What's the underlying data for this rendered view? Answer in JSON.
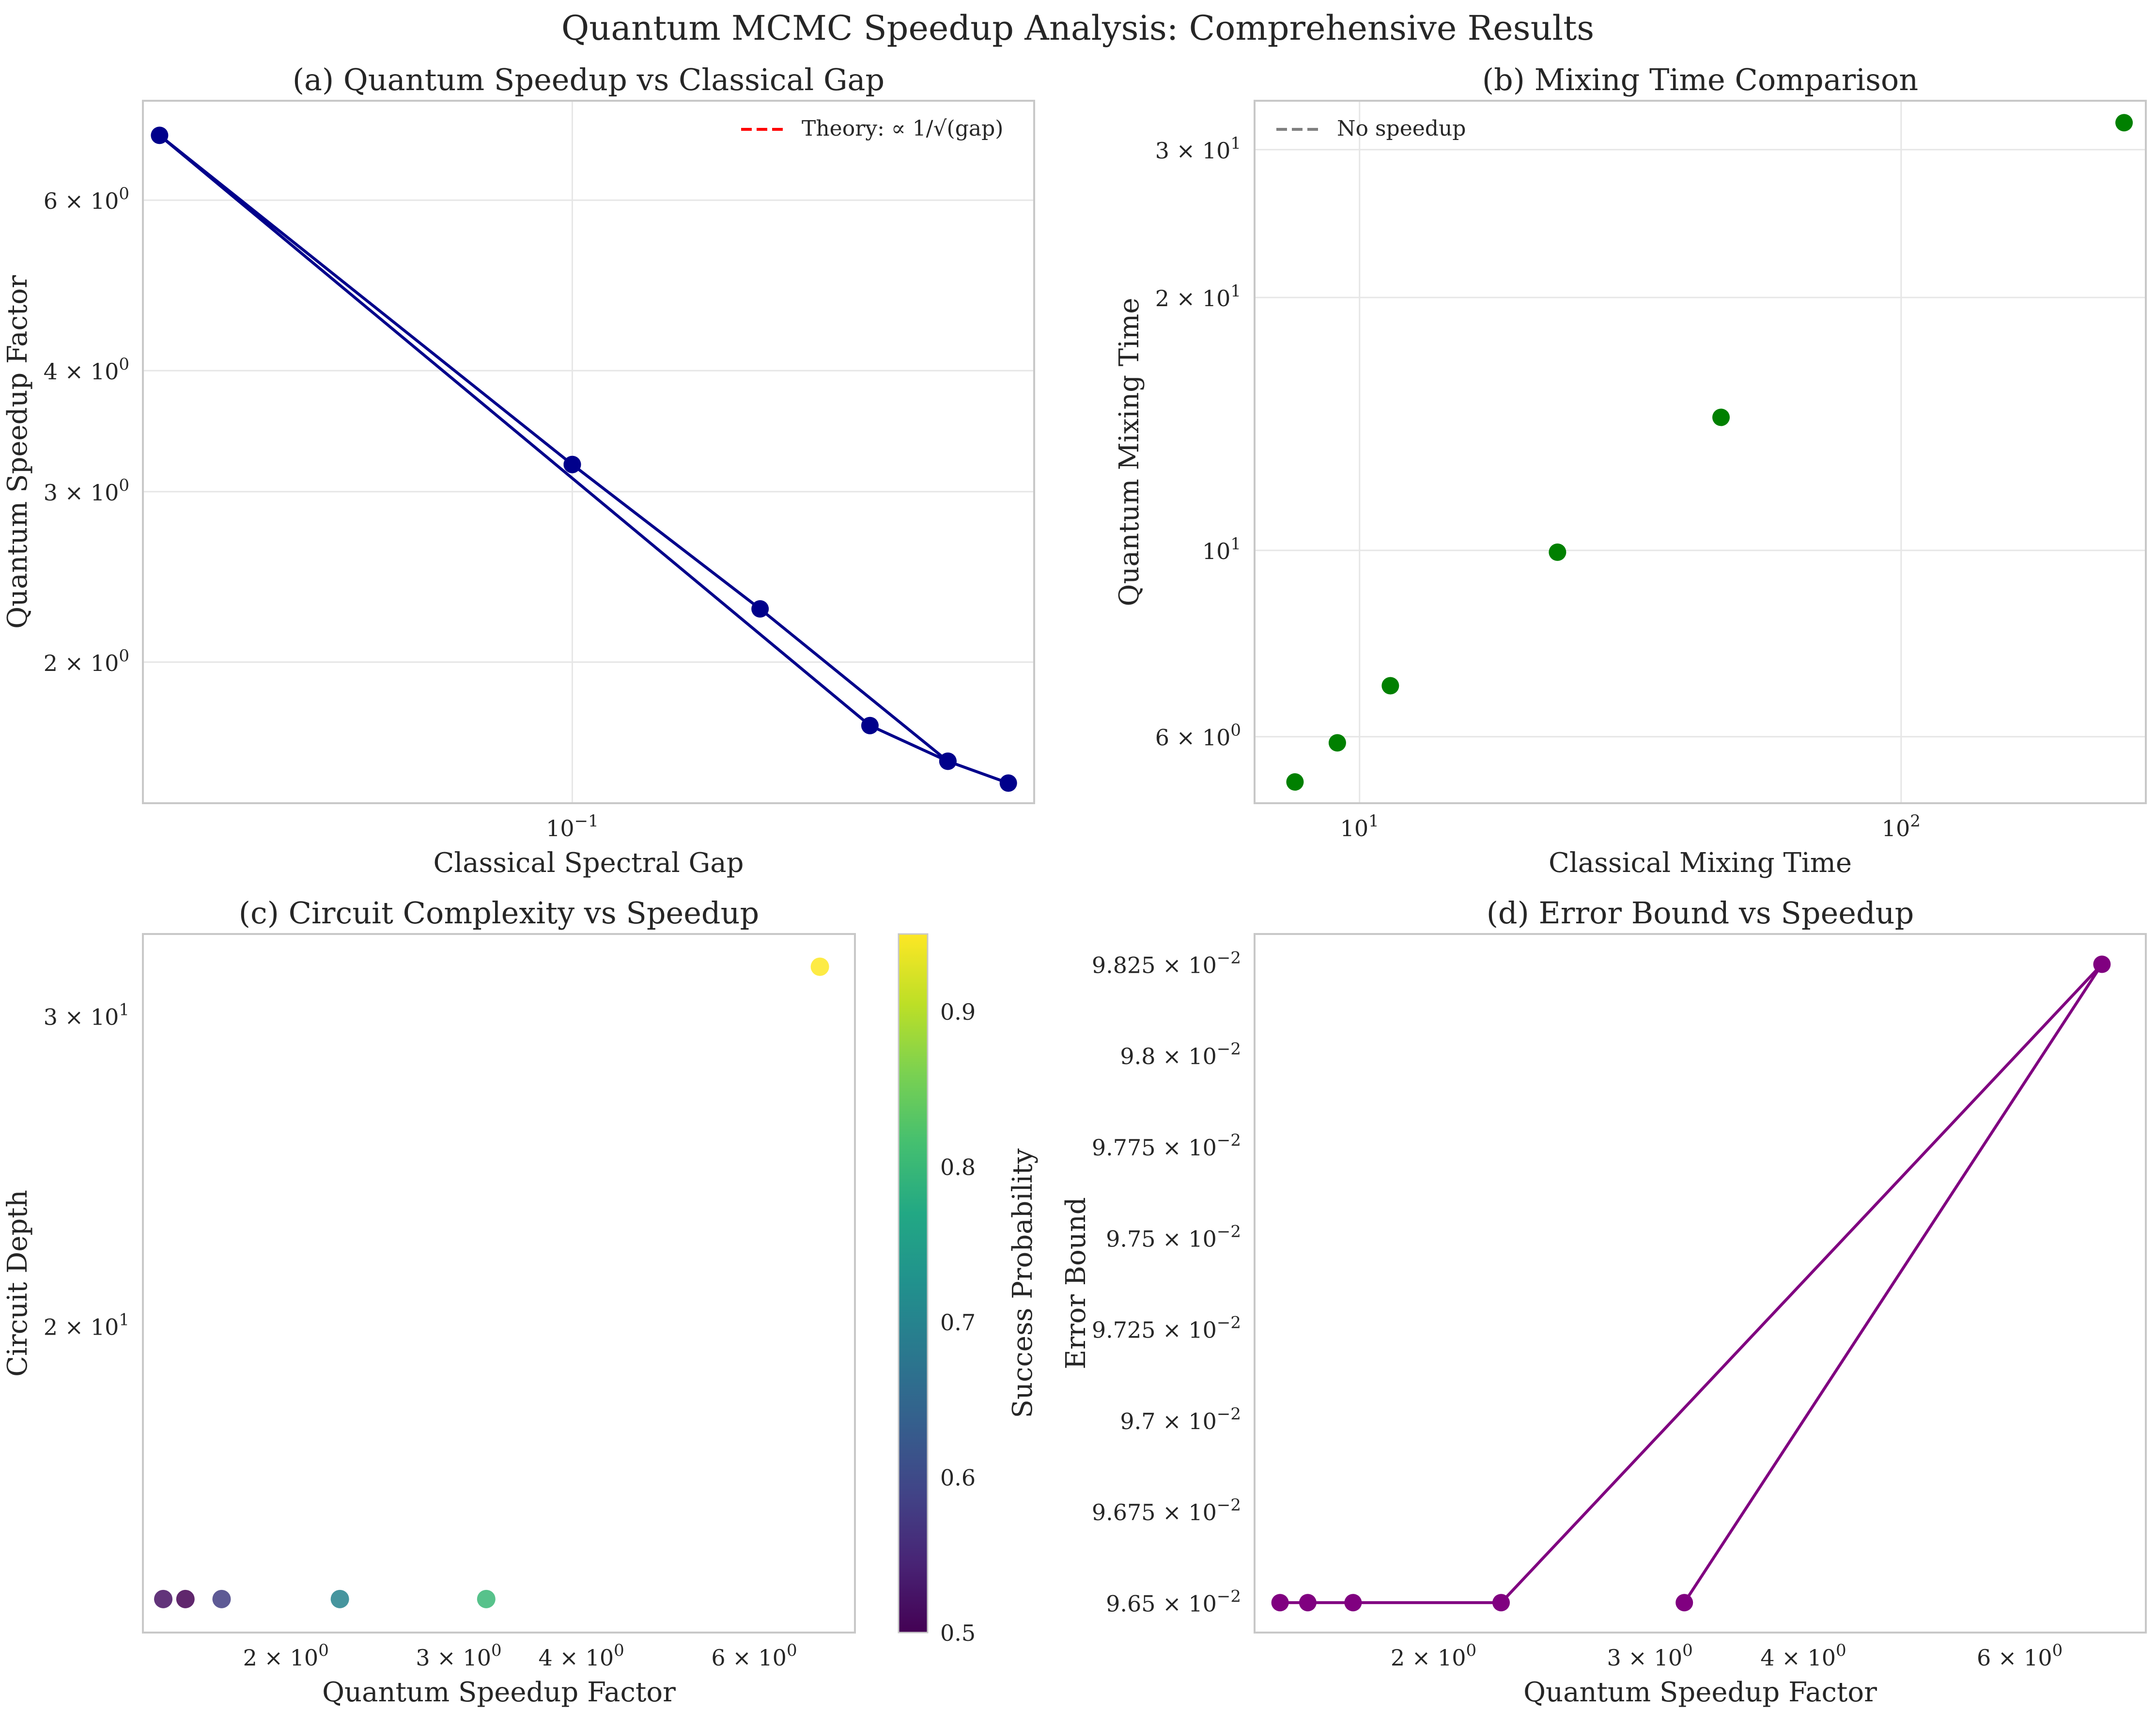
{
  "figure": {
    "title": "Quantum MCMC Speedup Analysis: Comprehensive Results"
  },
  "colors": {
    "panel_a": "#00008b",
    "panel_b": "#008000",
    "panel_d": "#800080",
    "theory_line": "#ff0000",
    "no_speedup_line": "#808080",
    "grid": "#e6e6e6",
    "spine": "#c8c8c8"
  },
  "chart_data": [
    {
      "id": "a",
      "type": "line",
      "title": "(a) Quantum Speedup vs Classical Gap",
      "xlabel": "Classical Spectral Gap",
      "ylabel": "Quantum Speedup Factor",
      "xscale": "log",
      "yscale": "log",
      "xlim": [
        0.0205,
        0.55
      ],
      "ylim": [
        1.43,
        7.6
      ],
      "grid": true,
      "xticks": [
        {
          "value": 0.1,
          "base": "10",
          "exp": "−1"
        }
      ],
      "yticks": [
        {
          "value": 2,
          "base": "2 × 10",
          "exp": "0"
        },
        {
          "value": 3,
          "base": "3 × 10",
          "exp": "0"
        },
        {
          "value": 4,
          "base": "4 × 10",
          "exp": "0"
        },
        {
          "value": 6,
          "base": "6 × 10",
          "exp": "0"
        }
      ],
      "legend": {
        "position": "top-right",
        "entries": [
          {
            "label": "Theory: ∝ 1/√(gap)",
            "style": "dashed",
            "color_key": "theory_line"
          }
        ]
      },
      "series": [
        {
          "color_key": "panel_a",
          "x": [
            0.1,
            0.0218,
            0.3,
            0.4,
            0.5,
            0.4,
            0.2,
            0.1
          ],
          "y": [
            3.2,
            7.0,
            1.72,
            1.58,
            1.5,
            1.58,
            2.27,
            3.2
          ]
        }
      ]
    },
    {
      "id": "b",
      "type": "scatter",
      "title": "(b) Mixing Time Comparison",
      "xlabel": "Classical Mixing Time",
      "ylabel": "Quantum Mixing Time",
      "xscale": "log",
      "yscale": "log",
      "xlim": [
        6.4,
        283
      ],
      "ylim": [
        5.0,
        34.3
      ],
      "grid": true,
      "xticks": [
        {
          "value": 10,
          "base": "10",
          "exp": "1"
        },
        {
          "value": 100,
          "base": "10",
          "exp": "2"
        }
      ],
      "yticks": [
        {
          "value": 6,
          "base": "6 × 10",
          "exp": "0"
        },
        {
          "value": 10,
          "base": "10",
          "exp": "1"
        },
        {
          "value": 20,
          "base": "2 × 10",
          "exp": "1"
        },
        {
          "value": 30,
          "base": "3 × 10",
          "exp": "1"
        }
      ],
      "legend": {
        "position": "top-left",
        "entries": [
          {
            "label": "No speedup",
            "style": "dashed",
            "color_key": "no_speedup_line"
          }
        ]
      },
      "series": [
        {
          "color_key": "panel_b",
          "x": [
            7.6,
            9.1,
            11.4,
            23.2,
            46.5,
            258
          ],
          "y": [
            5.3,
            5.9,
            6.9,
            9.95,
            14.4,
            32.3
          ]
        }
      ]
    },
    {
      "id": "c",
      "type": "scatter",
      "title": "(c) Circuit Complexity vs Speedup",
      "xlabel": "Quantum Speedup Factor",
      "ylabel": "Circuit Depth",
      "xscale": "log",
      "yscale": "log",
      "xlim": [
        1.43,
        7.6
      ],
      "ylim": [
        13.4,
        33.4
      ],
      "grid": false,
      "xticks": [
        {
          "value": 2,
          "base": "2 × 10",
          "exp": "0"
        },
        {
          "value": 3,
          "base": "3 × 10",
          "exp": "0"
        },
        {
          "value": 4,
          "base": "4 × 10",
          "exp": "0"
        },
        {
          "value": 6,
          "base": "6 × 10",
          "exp": "0"
        }
      ],
      "yticks": [
        {
          "value": 20,
          "base": "2 × 10",
          "exp": "1"
        },
        {
          "value": 30,
          "base": "3 × 10",
          "exp": "1"
        }
      ],
      "colorbar": {
        "label": "Success Probability",
        "range": [
          0.5,
          0.95
        ],
        "ticks": [
          "0.5",
          "0.6",
          "0.7",
          "0.8",
          "0.9"
        ]
      },
      "points": [
        {
          "x": 1.5,
          "y": 14.0,
          "c": 0.52
        },
        {
          "x": 1.58,
          "y": 14.0,
          "c": 0.5
        },
        {
          "x": 1.72,
          "y": 14.0,
          "c": 0.58
        },
        {
          "x": 2.27,
          "y": 14.0,
          "c": 0.7
        },
        {
          "x": 3.2,
          "y": 14.0,
          "c": 0.8
        },
        {
          "x": 7.0,
          "y": 32.0,
          "c": 0.95
        }
      ]
    },
    {
      "id": "d",
      "type": "line",
      "title": "(d) Error Bound vs Speedup",
      "xlabel": "Quantum Speedup Factor",
      "ylabel": "Error Bound",
      "xscale": "log",
      "yscale": "linear",
      "xlim": [
        1.43,
        7.6
      ],
      "ylim": [
        0.096418,
        0.098333
      ],
      "grid": false,
      "xticks": [
        {
          "value": 2,
          "base": "2 × 10",
          "exp": "0"
        },
        {
          "value": 3,
          "base": "3 × 10",
          "exp": "0"
        },
        {
          "value": 4,
          "base": "4 × 10",
          "exp": "0"
        },
        {
          "value": 6,
          "base": "6 × 10",
          "exp": "0"
        }
      ],
      "yticks": [
        {
          "value": 0.0965,
          "base": "9.65 × 10",
          "exp": "−2"
        },
        {
          "value": 0.09675,
          "base": "9.675 × 10",
          "exp": "−2"
        },
        {
          "value": 0.097,
          "base": "9.7 × 10",
          "exp": "−2"
        },
        {
          "value": 0.09725,
          "base": "9.725 × 10",
          "exp": "−2"
        },
        {
          "value": 0.0975,
          "base": "9.75 × 10",
          "exp": "−2"
        },
        {
          "value": 0.09775,
          "base": "9.775 × 10",
          "exp": "−2"
        },
        {
          "value": 0.098,
          "base": "9.8 × 10",
          "exp": "−2"
        },
        {
          "value": 0.09825,
          "base": "9.825 × 10",
          "exp": "−2"
        }
      ],
      "series": [
        {
          "color_key": "panel_d",
          "x": [
            3.2,
            7.0,
            2.27,
            1.72,
            1.58,
            1.5
          ],
          "y": [
            0.0965,
            0.09825,
            0.0965,
            0.0965,
            0.0965,
            0.0965
          ]
        }
      ]
    }
  ]
}
